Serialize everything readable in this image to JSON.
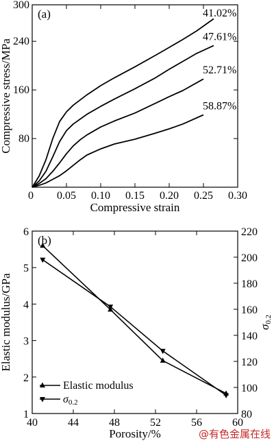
{
  "chart_data": [
    {
      "type": "line",
      "panel_label": "(a)",
      "xlabel": "Compressive strain",
      "ylabel": "Compressive stress/MPa",
      "xlim": [
        0,
        0.3
      ],
      "ylim": [
        0,
        300
      ],
      "xticks": [
        "0",
        "0.05",
        "0.10",
        "0.15",
        "0.20",
        "0.25",
        "0.30"
      ],
      "yticks": [
        "80",
        "160",
        "240",
        "300"
      ],
      "origin_label": "0",
      "series": [
        {
          "name": "41.02%",
          "x": [
            0,
            0.01,
            0.02,
            0.03,
            0.04,
            0.05,
            0.06,
            0.08,
            0.1,
            0.12,
            0.15,
            0.18,
            0.2,
            0.22,
            0.24,
            0.265
          ],
          "y": [
            0,
            18,
            45,
            80,
            108,
            124,
            135,
            152,
            167,
            180,
            198,
            217,
            230,
            243,
            257,
            277
          ]
        },
        {
          "name": "47.61%",
          "x": [
            0,
            0.01,
            0.02,
            0.03,
            0.04,
            0.05,
            0.06,
            0.08,
            0.1,
            0.12,
            0.15,
            0.18,
            0.2,
            0.22,
            0.24,
            0.265
          ],
          "y": [
            0,
            10,
            26,
            50,
            75,
            93,
            104,
            120,
            133,
            145,
            162,
            180,
            194,
            207,
            220,
            233
          ]
        },
        {
          "name": "52.71%",
          "x": [
            0,
            0.01,
            0.02,
            0.03,
            0.04,
            0.05,
            0.06,
            0.07,
            0.08,
            0.1,
            0.12,
            0.15,
            0.18,
            0.2,
            0.22,
            0.25
          ],
          "y": [
            0,
            6,
            14,
            26,
            40,
            55,
            68,
            78,
            86,
            99,
            109,
            122,
            138,
            149,
            159,
            178
          ]
        },
        {
          "name": "58.87%",
          "x": [
            0,
            0.01,
            0.02,
            0.03,
            0.04,
            0.05,
            0.06,
            0.07,
            0.08,
            0.1,
            0.12,
            0.15,
            0.18,
            0.2,
            0.22,
            0.25
          ],
          "y": [
            0,
            3,
            7,
            13,
            19,
            27,
            36,
            45,
            53,
            63,
            71,
            79,
            89,
            96,
            104,
            119
          ]
        }
      ]
    },
    {
      "type": "line",
      "panel_label": "(b)",
      "xlabel": "Porosity/%",
      "ylabel": "Elastic modulus/GPa",
      "y2label": "σ0.2/MPa",
      "xlim": [
        40,
        60
      ],
      "ylim": [
        1,
        6
      ],
      "y2lim": [
        80,
        220
      ],
      "xticks": [
        "40",
        "44",
        "48",
        "52",
        "56",
        "60"
      ],
      "yticks": [
        "1",
        "2",
        "3",
        "4",
        "5",
        "6"
      ],
      "y2ticks": [
        "80",
        "100",
        "120",
        "140",
        "160",
        "180",
        "200",
        "220"
      ],
      "legend_position": "bottom-left",
      "series": [
        {
          "name": "Elastic modulus",
          "axis": "left",
          "marker": "triangle-up",
          "x": [
            41.02,
            47.61,
            52.71,
            58.87
          ],
          "y": [
            5.6,
            3.85,
            2.45,
            1.55
          ]
        },
        {
          "name": "σ0.2",
          "axis": "right",
          "marker": "triangle-down",
          "x": [
            41.02,
            47.61,
            52.71,
            58.87
          ],
          "y": [
            198,
            162,
            128,
            94
          ]
        }
      ]
    }
  ],
  "watermark": "@有色金属在线",
  "colors": {
    "line": "#000000",
    "watermark": "#c62828",
    "background": "#ffffff"
  }
}
